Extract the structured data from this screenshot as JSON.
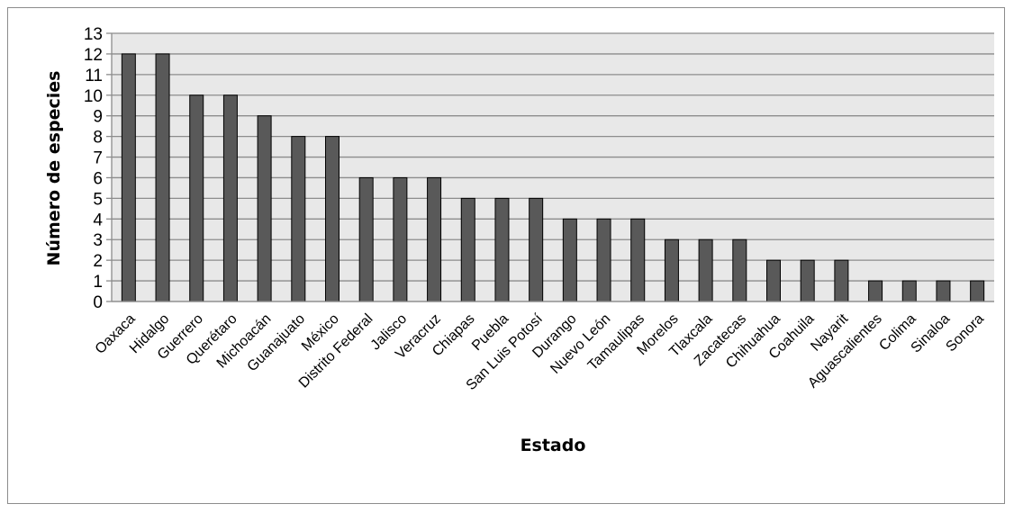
{
  "chart_data": {
    "type": "bar",
    "title": "",
    "xlabel": "Estado",
    "ylabel": "Número de especies",
    "ylim": [
      0,
      13
    ],
    "yticks": [
      0,
      1,
      2,
      3,
      4,
      5,
      6,
      7,
      8,
      9,
      10,
      11,
      12,
      13
    ],
    "grid": true,
    "legend": "none",
    "colors": {
      "bar": "#595959",
      "plot_bg": "#e8e8e8",
      "grid": "#8c8c8c"
    },
    "categories": [
      "Oaxaca",
      "Hidalgo",
      "Guerrero",
      "Querétaro",
      "Michoacán",
      "Guanajuato",
      "México",
      "Distrito Federal",
      "Jalisco",
      "Veracruz",
      "Chiapas",
      "Puebla",
      "San Luis Potosí",
      "Durango",
      "Nuevo León",
      "Tamaulipas",
      "Morelos",
      "Tlaxcala",
      "Zacatecas",
      "Chihuahua",
      "Coahuila",
      "Nayarit",
      "Aguascalientes",
      "Colima",
      "Sinaloa",
      "Sonora"
    ],
    "values": [
      12,
      12,
      10,
      10,
      9,
      8,
      8,
      6,
      6,
      6,
      5,
      5,
      5,
      4,
      4,
      4,
      3,
      3,
      3,
      2,
      2,
      2,
      1,
      1,
      1,
      1
    ]
  }
}
